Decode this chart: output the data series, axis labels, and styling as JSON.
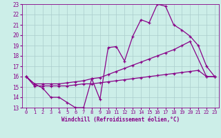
{
  "xlabel": "Windchill (Refroidissement éolien,°C)",
  "background_color": "#cceee8",
  "line_color": "#880088",
  "grid_color": "#aacccc",
  "xlim": [
    -0.5,
    23.5
  ],
  "ylim": [
    13,
    23
  ],
  "xticks": [
    0,
    1,
    2,
    3,
    4,
    5,
    6,
    7,
    8,
    9,
    10,
    11,
    12,
    13,
    14,
    15,
    16,
    17,
    18,
    19,
    20,
    21,
    22,
    23
  ],
  "yticks": [
    13,
    14,
    15,
    16,
    17,
    18,
    19,
    20,
    21,
    22,
    23
  ],
  "line1_x": [
    0,
    1,
    2,
    3,
    4,
    5,
    6,
    7,
    8,
    9,
    10,
    11,
    12,
    13,
    14,
    15,
    16,
    17,
    18,
    19,
    20,
    21,
    22,
    23
  ],
  "line1_y": [
    16.0,
    15.3,
    14.9,
    14.0,
    14.0,
    13.5,
    13.0,
    13.0,
    15.8,
    13.8,
    18.8,
    18.9,
    17.5,
    19.9,
    21.5,
    21.2,
    23.0,
    22.8,
    21.0,
    20.5,
    19.9,
    19.0,
    17.0,
    16.0
  ],
  "line2_x": [
    0,
    1,
    2,
    3,
    4,
    5,
    6,
    7,
    8,
    9,
    10,
    11,
    12,
    13,
    14,
    15,
    16,
    17,
    18,
    19,
    20,
    22,
    23
  ],
  "line2_y": [
    16.0,
    15.3,
    15.3,
    15.3,
    15.3,
    15.4,
    15.5,
    15.6,
    15.8,
    15.9,
    16.2,
    16.5,
    16.8,
    17.1,
    17.4,
    17.7,
    18.0,
    18.3,
    18.6,
    19.0,
    19.4,
    16.0,
    16.0
  ],
  "line3_x": [
    0,
    1,
    2,
    3,
    4,
    5,
    6,
    7,
    8,
    9,
    10,
    11,
    12,
    13,
    14,
    15,
    16,
    17,
    18,
    19,
    20,
    21,
    22,
    23
  ],
  "line3_y": [
    16.0,
    15.1,
    15.1,
    15.1,
    15.1,
    15.1,
    15.2,
    15.3,
    15.3,
    15.4,
    15.5,
    15.6,
    15.7,
    15.8,
    15.9,
    16.0,
    16.1,
    16.2,
    16.3,
    16.4,
    16.5,
    16.6,
    16.0,
    16.0
  ]
}
